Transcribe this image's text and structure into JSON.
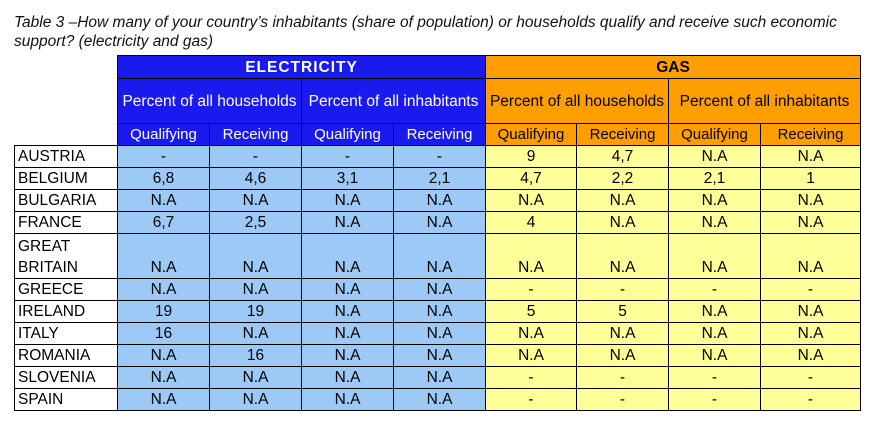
{
  "caption": "Table 3 –How many of your country’s inhabitants (share of population) or households qualify and receive such economic support? (electricity and gas)",
  "groups": {
    "electricity": "ELECTRICITY",
    "gas": "GAS"
  },
  "subgroups": {
    "elec_households": "Percent of all households",
    "elec_inhabitants": "Percent of all inhabitants",
    "gas_households": "Percent of all households",
    "gas_inhabitants": "Percent of all inhabitants"
  },
  "columns": {
    "qualifying": "Qualifying",
    "receiving": "Receiving"
  },
  "rows": [
    {
      "country": "AUSTRIA",
      "values": [
        "-",
        "-",
        "-",
        "-",
        "9",
        "4,7",
        "N.A",
        "N.A"
      ]
    },
    {
      "country": "BELGIUM",
      "values": [
        "6,8",
        "4,6",
        "3,1",
        "2,1",
        "4,7",
        "2,2",
        "2,1",
        "1"
      ]
    },
    {
      "country": "BULGARIA",
      "values": [
        "N.A",
        "N.A",
        "N.A",
        "N.A",
        "N.A",
        "N.A",
        "N.A",
        "N.A"
      ]
    },
    {
      "country": "FRANCE",
      "values": [
        "6,7",
        "2,5",
        "N.A",
        "N.A",
        "4",
        "N.A",
        "N.A",
        "N.A"
      ]
    },
    {
      "country": "GREAT BRITAIN",
      "values": [
        "N.A",
        "N.A",
        "N.A",
        "N.A",
        "N.A",
        "N.A",
        "N.A",
        "N.A"
      ]
    },
    {
      "country": "GREECE",
      "values": [
        "N.A",
        "N.A",
        "N.A",
        "N.A",
        "-",
        "-",
        "-",
        "-"
      ]
    },
    {
      "country": "IRELAND",
      "values": [
        "19",
        "19",
        "N.A",
        "N.A",
        "5",
        "5",
        "N.A",
        "N.A"
      ]
    },
    {
      "country": "ITALY",
      "values": [
        "16",
        "N.A",
        "N.A",
        "N.A",
        "N.A",
        "N.A",
        "N.A",
        "N.A"
      ]
    },
    {
      "country": "ROMANIA",
      "values": [
        "N.A",
        "16",
        "N.A",
        "N.A",
        "N.A",
        "N.A",
        "N.A",
        "N.A"
      ]
    },
    {
      "country": "SLOVENIA",
      "values": [
        "N.A",
        "N.A",
        "N.A",
        "N.A",
        "-",
        "-",
        "-",
        "-"
      ]
    },
    {
      "country": "SPAIN",
      "values": [
        "N.A",
        "N.A",
        "N.A",
        "N.A",
        "-",
        "-",
        "-",
        "-"
      ]
    }
  ],
  "colors": {
    "electricity_header": "#1a1aee",
    "electricity_cells": "#9dc9f7",
    "gas_header": "#ff9e00",
    "gas_cells": "#ffff99"
  }
}
